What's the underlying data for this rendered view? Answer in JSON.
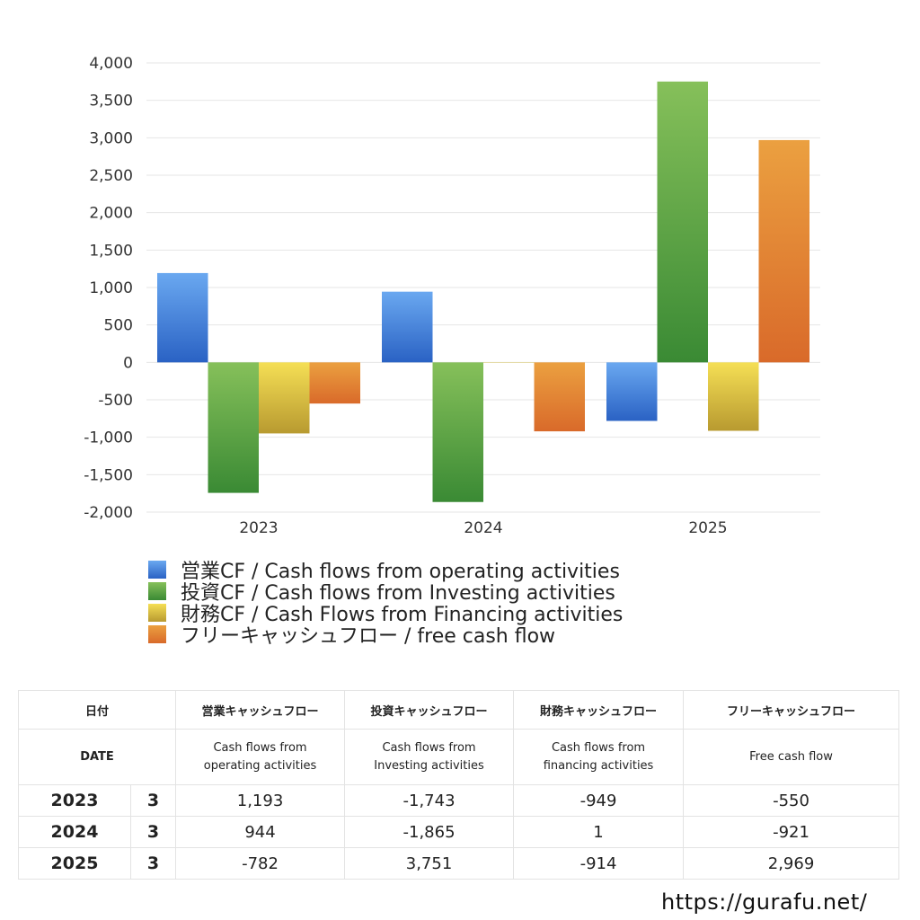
{
  "chart_data": {
    "type": "bar",
    "categories": [
      "2023",
      "2024",
      "2025"
    ],
    "series": [
      {
        "name": "営業CF / Cash flows from operating activities",
        "values": [
          1193,
          944,
          -782
        ]
      },
      {
        "name": "投資CF / Cash flows from Investing activities",
        "values": [
          -1743,
          -1865,
          3751
        ]
      },
      {
        "name": "財務CF / Cash Flows from Financing activities",
        "values": [
          -949,
          1,
          -914
        ]
      },
      {
        "name": "フリーキャッシュフロー / free cash flow",
        "values": [
          -550,
          -921,
          2969
        ]
      }
    ],
    "ylim": [
      -2000,
      4000
    ],
    "yticks": [
      "4,000",
      "3,500",
      "3,000",
      "2,500",
      "2,000",
      "1,500",
      "1,000",
      "500",
      "0",
      "-500",
      "-1,000",
      "-1,500",
      "-2,000"
    ],
    "ytick_values": [
      4000,
      3500,
      3000,
      2500,
      2000,
      1500,
      1000,
      500,
      0,
      -500,
      -1000,
      -1500,
      -2000
    ],
    "grid": true,
    "legend_position": "bottom",
    "colors": [
      {
        "top": "#6aa8f0",
        "bottom": "#2a62c4"
      },
      {
        "top": "#86c05a",
        "bottom": "#3a8a34"
      },
      {
        "top": "#f5df55",
        "bottom": "#b89a30"
      },
      {
        "top": "#eba040",
        "bottom": "#d96a2a"
      }
    ]
  },
  "table": {
    "header_jp": [
      "日付",
      "営業キャッシュフロー",
      "投資キャッシュフロー",
      "財務キャッシュフロー",
      "フリーキャッシュフロー"
    ],
    "header_en": [
      "DATE",
      "Cash flows from operating activities",
      "Cash flows from Investing activities",
      "Cash flows from financing activities",
      "Free cash flow"
    ],
    "rows": [
      {
        "year": "2023",
        "month": "3",
        "operating": "1,193",
        "investing": "-1,743",
        "financing": "-949",
        "free": "-550"
      },
      {
        "year": "2024",
        "month": "3",
        "operating": "944",
        "investing": "-1,865",
        "financing": "1",
        "free": "-921"
      },
      {
        "year": "2025",
        "month": "3",
        "operating": "-782",
        "investing": "3,751",
        "financing": "-914",
        "free": "2,969"
      }
    ]
  },
  "footer": {
    "url": "https://gurafu.net/"
  }
}
